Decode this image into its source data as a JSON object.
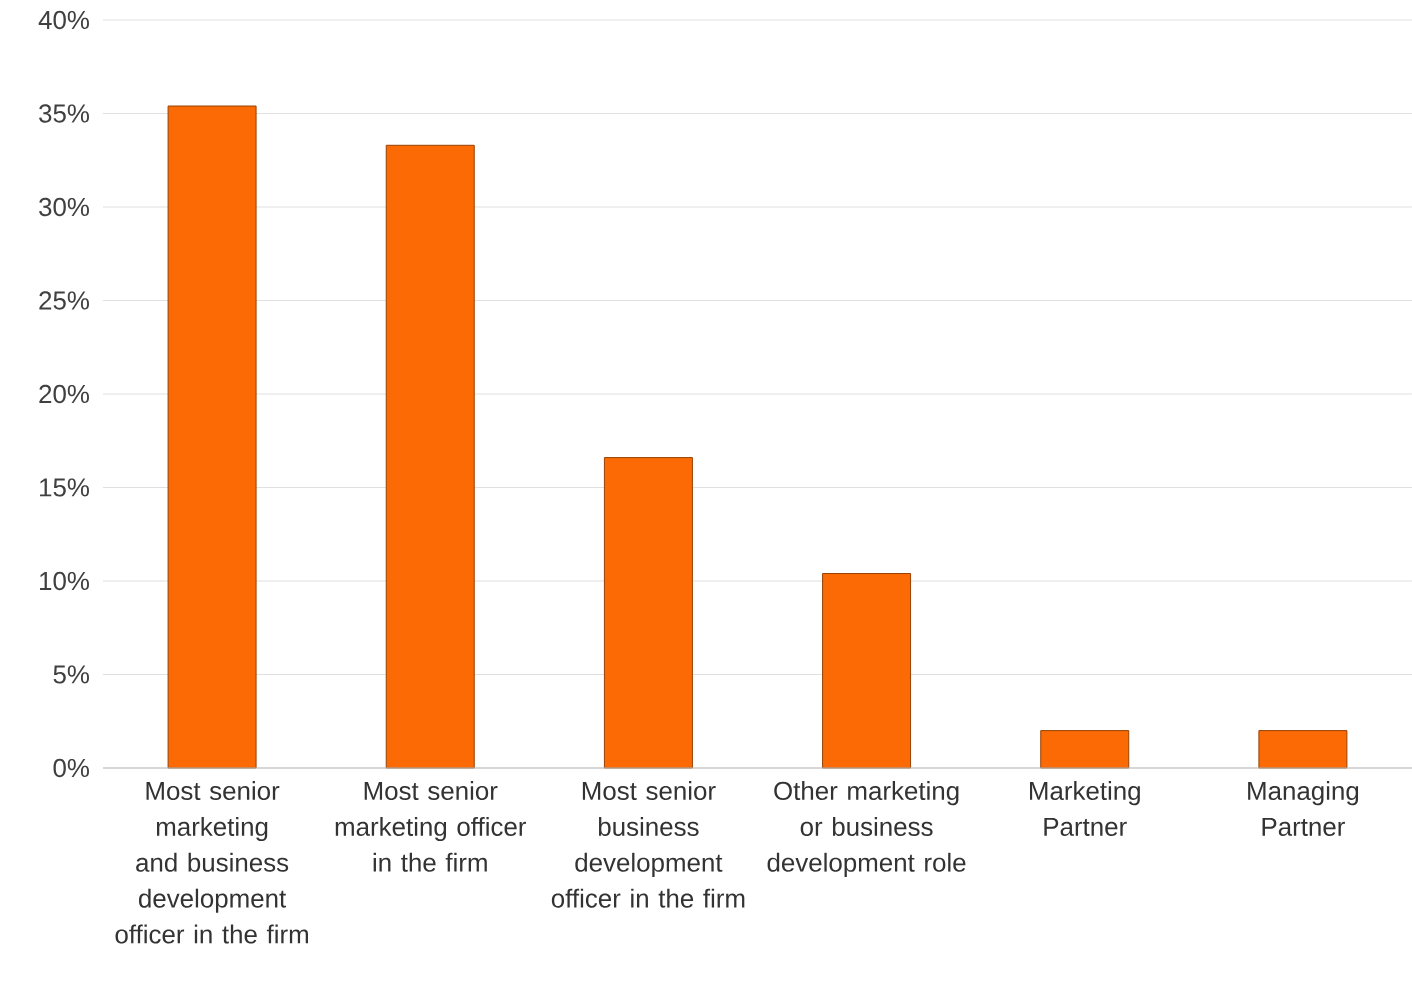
{
  "chart_data": {
    "type": "bar",
    "categories": [
      "Most senior marketing and business development officer in the firm",
      "Most senior marketing officer in the firm",
      "Most senior business development officer in the firm",
      "Other marketing or business development role",
      "Marketing Partner",
      "Managing Partner"
    ],
    "values": [
      35.4,
      33.3,
      16.6,
      10.4,
      2.0,
      2.0
    ],
    "color": "#fb6a05",
    "ylim": [
      0,
      40
    ],
    "yticks": [
      {
        "value": 0,
        "label": "0%"
      },
      {
        "value": 5,
        "label": "5%"
      },
      {
        "value": 10,
        "label": "10%"
      },
      {
        "value": 15,
        "label": "15%"
      },
      {
        "value": 20,
        "label": "20%"
      },
      {
        "value": 25,
        "label": "25%"
      },
      {
        "value": 30,
        "label": "30%"
      },
      {
        "value": 35,
        "label": "35%"
      },
      {
        "value": 40,
        "label": "40%"
      }
    ],
    "grid": "y"
  }
}
